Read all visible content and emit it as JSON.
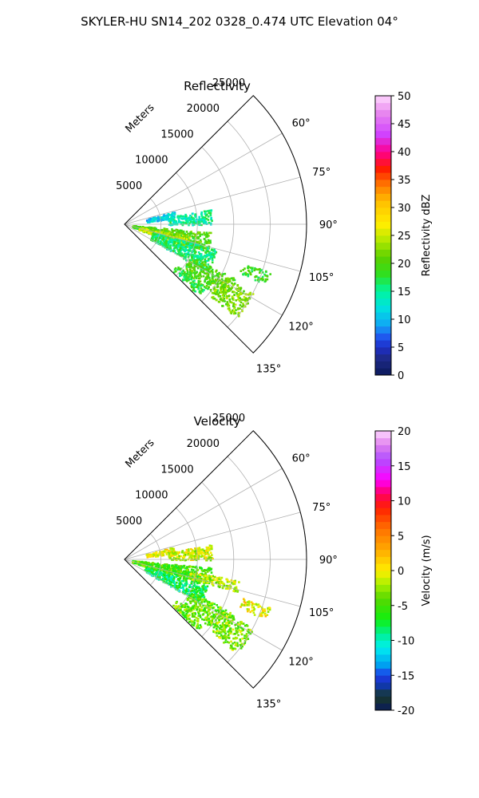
{
  "figure": {
    "suptitle": "SKYLER-HU  SN14_202  0328_0.474 UTC Elevation 04°"
  },
  "chart_data": [
    {
      "type": "polar sector (radar PPI)",
      "title": "Reflectivity",
      "radial_axis_label": "Meters",
      "radial_ticks": [
        5000,
        10000,
        15000,
        20000,
        25000
      ],
      "radial_max": 25000,
      "azimuth_range_deg": [
        45,
        135
      ],
      "azimuth_ticks": [
        "60°",
        "75°",
        "90°",
        "105°",
        "120°",
        "135°"
      ],
      "grid": true,
      "colorbar": {
        "label": "Reflectivity dBZ",
        "range": [
          0,
          50
        ],
        "ticks": [
          0,
          5,
          10,
          15,
          20,
          25,
          30,
          35,
          40,
          45,
          50
        ]
      },
      "echo_regions": [
        {
          "az": [
            75,
            83
          ],
          "r": [
            3000,
            7000
          ],
          "value": 11
        },
        {
          "az": [
            80,
            90
          ],
          "r": [
            6000,
            12000
          ],
          "value": 15
        },
        {
          "az": [
            95,
            108
          ],
          "r": [
            1000,
            12000
          ],
          "value": 20
        },
        {
          "az": [
            100,
            110
          ],
          "r": [
            2000,
            9000
          ],
          "value": 24
        },
        {
          "az": [
            105,
            120
          ],
          "r": [
            4000,
            13000
          ],
          "value": 16
        },
        {
          "az": [
            116,
            128
          ],
          "r": [
            10000,
            17000
          ],
          "value": 20
        },
        {
          "az": [
            118,
            130
          ],
          "r": [
            15000,
            20000
          ],
          "value": 22
        },
        {
          "az": [
            108,
            113
          ],
          "r": [
            17000,
            21000
          ],
          "value": 19
        },
        {
          "az": [
            128,
            134
          ],
          "r": [
            9000,
            14000
          ],
          "value": 18
        }
      ]
    },
    {
      "type": "polar sector (radar PPI)",
      "title": "Velocity",
      "radial_axis_label": "Meters",
      "radial_ticks": [
        5000,
        10000,
        15000,
        20000,
        25000
      ],
      "radial_max": 25000,
      "azimuth_range_deg": [
        45,
        135
      ],
      "azimuth_ticks": [
        "60°",
        "75°",
        "90°",
        "105°",
        "120°",
        "135°"
      ],
      "grid": true,
      "colorbar": {
        "label": "Velocity (m/s)",
        "range": [
          -20,
          20
        ],
        "ticks": [
          -20,
          -15,
          -10,
          -5,
          0,
          5,
          10,
          15,
          20
        ]
      },
      "echo_regions": [
        {
          "az": [
            75,
            83
          ],
          "r": [
            3000,
            7000
          ],
          "value": 0
        },
        {
          "az": [
            80,
            90
          ],
          "r": [
            6000,
            12000
          ],
          "value": -1
        },
        {
          "az": [
            95,
            108
          ],
          "r": [
            1000,
            12000
          ],
          "value": -5
        },
        {
          "az": [
            108,
            120
          ],
          "r": [
            3000,
            12000
          ],
          "value": -8
        },
        {
          "az": [
            100,
            106
          ],
          "r": [
            9000,
            16000
          ],
          "value": -2
        },
        {
          "az": [
            116,
            128
          ],
          "r": [
            10000,
            17000
          ],
          "value": -4
        },
        {
          "az": [
            118,
            130
          ],
          "r": [
            15000,
            20000
          ],
          "value": -3
        },
        {
          "az": [
            108,
            113
          ],
          "r": [
            17000,
            21000
          ],
          "value": 0
        },
        {
          "az": [
            128,
            134
          ],
          "r": [
            9000,
            14000
          ],
          "value": -4
        }
      ]
    }
  ]
}
